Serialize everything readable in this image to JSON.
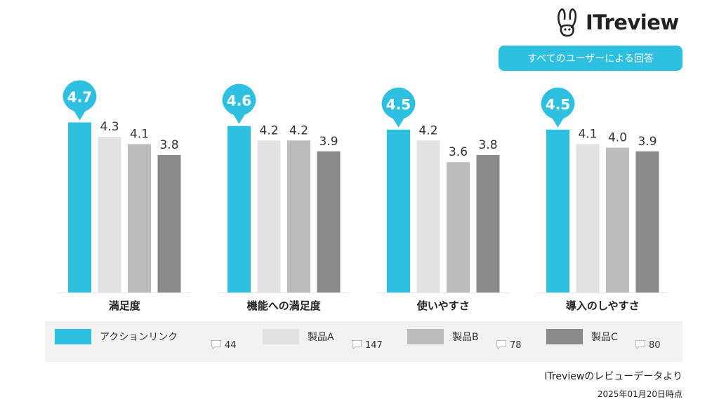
{
  "logo": {
    "text": "ITreview",
    "icon": "rabbit-icon"
  },
  "badge": {
    "text": "すべてのユーザーによる回答"
  },
  "footer": {
    "source": "ITreviewのレビューデータより",
    "date": "2025年01月20日時点"
  },
  "colors": {
    "accent": "#2ec0e0",
    "product_a": "#e2e2e2",
    "product_b": "#bcbcbc",
    "product_c": "#8a8a8a"
  },
  "legend": [
    {
      "label": "アクションリンク",
      "count": "44",
      "color": "#2ec0e0"
    },
    {
      "label": "製品A",
      "count": "147",
      "color": "#e2e2e2"
    },
    {
      "label": "製品B",
      "count": "78",
      "color": "#bcbcbc"
    },
    {
      "label": "製品C",
      "count": "80",
      "color": "#8a8a8a"
    }
  ],
  "chart_data": {
    "type": "bar",
    "categories": [
      "満足度",
      "機能への満足度",
      "使いやすさ",
      "導入のしやすさ"
    ],
    "series": [
      {
        "name": "アクションリンク",
        "values": [
          4.7,
          4.6,
          4.5,
          4.5
        ],
        "color": "#2ec0e0"
      },
      {
        "name": "製品A",
        "values": [
          4.3,
          4.2,
          4.2,
          4.1
        ],
        "color": "#e2e2e2"
      },
      {
        "name": "製品B",
        "values": [
          4.1,
          4.2,
          3.6,
          4.0
        ],
        "color": "#bcbcbc"
      },
      {
        "name": "製品C",
        "values": [
          3.8,
          3.9,
          3.8,
          3.9
        ],
        "color": "#8a8a8a"
      }
    ],
    "value_labels": [
      [
        "4.7",
        "4.3",
        "4.1",
        "3.8"
      ],
      [
        "4.6",
        "4.2",
        "4.2",
        "3.9"
      ],
      [
        "4.5",
        "4.2",
        "3.6",
        "3.8"
      ],
      [
        "4.5",
        "4.1",
        "4.0",
        "3.9"
      ]
    ],
    "ylim": [
      0,
      5
    ],
    "grid": false,
    "legend_position": "bottom"
  }
}
